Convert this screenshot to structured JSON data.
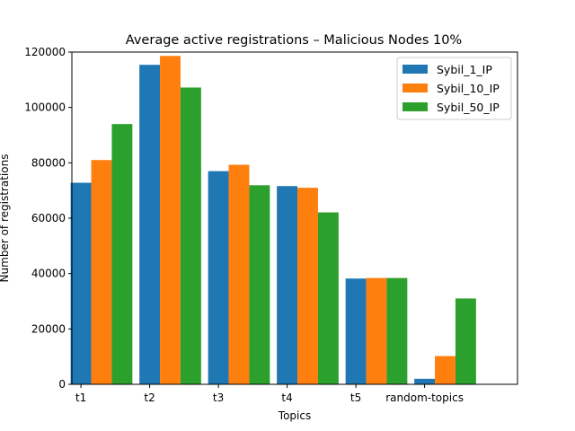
{
  "chart_data": {
    "type": "bar",
    "title": "Average active registrations – Malicious Nodes 10%",
    "xlabel": "Topics",
    "ylabel": "Number of registrations",
    "categories": [
      "t1",
      "t2",
      "t3",
      "t4",
      "t5",
      "random-topics"
    ],
    "series": [
      {
        "name": "Sybil_1_IP",
        "color": "#1f77b4",
        "values": [
          72800,
          115400,
          77000,
          71600,
          38200,
          2000
        ]
      },
      {
        "name": "Sybil_10_IP",
        "color": "#ff7f0e",
        "values": [
          81000,
          118600,
          79300,
          71000,
          38400,
          10200
        ]
      },
      {
        "name": "Sybil_50_IP",
        "color": "#2ca02c",
        "values": [
          94000,
          107200,
          71900,
          62100,
          38400,
          31000
        ]
      }
    ],
    "ylim": [
      0,
      120000
    ],
    "yticks": [
      0,
      20000,
      40000,
      60000,
      80000,
      100000,
      120000
    ],
    "legend_position": "top-right",
    "grid": false
  }
}
